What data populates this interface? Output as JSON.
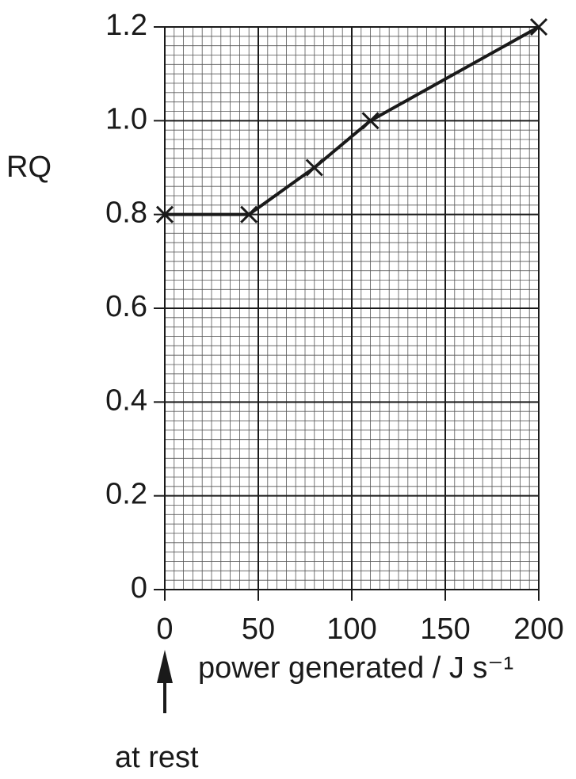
{
  "chart_data": {
    "type": "line",
    "ylabel": "RQ",
    "xlabel": "power generated / J s⁻¹",
    "annotation": "at rest",
    "x": [
      0,
      45,
      80,
      110,
      200
    ],
    "values": [
      0.8,
      0.8,
      0.9,
      1.0,
      1.2
    ],
    "color": "#1a1a1a",
    "xlim": [
      0,
      200
    ],
    "xticks": [
      0,
      50,
      100,
      150,
      200
    ],
    "ylim": [
      0,
      1.2
    ],
    "yticks": [
      0,
      0.2,
      0.4,
      0.6,
      0.8,
      {
        "value": 1.0,
        "label": "1.0"
      },
      1.2
    ],
    "grid": true
  }
}
